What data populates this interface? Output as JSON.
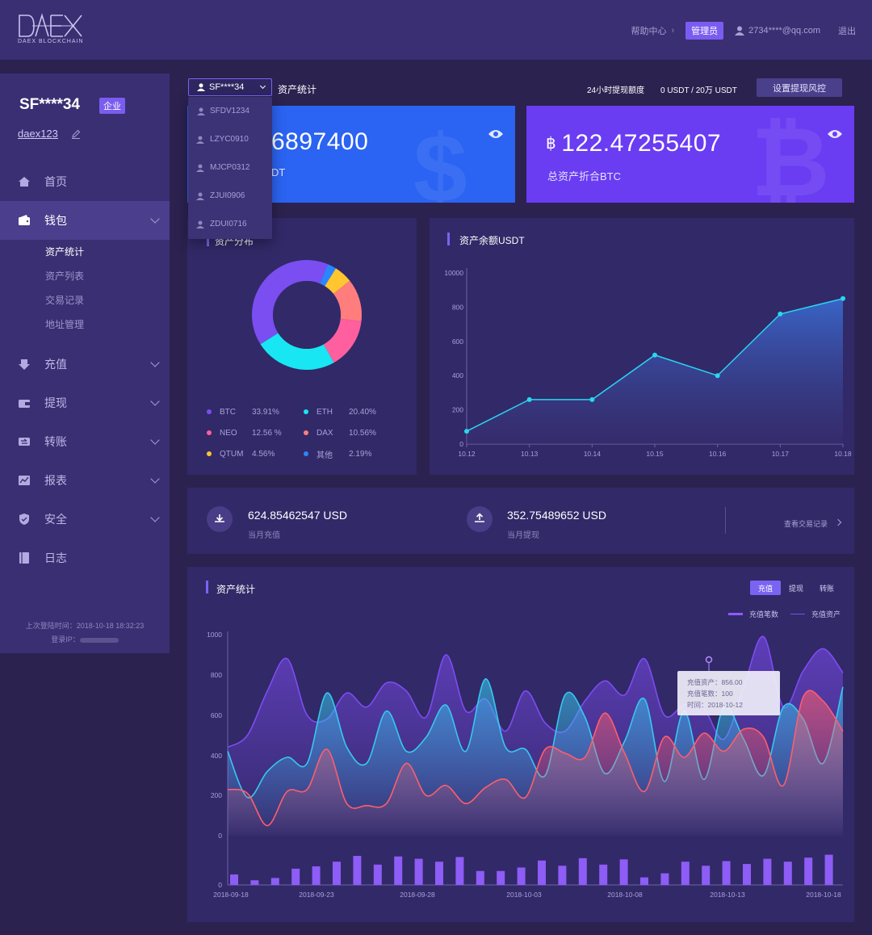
{
  "header": {
    "logo_text": "DAEX",
    "logo_sub": "DAEX BLOCKCHAIN",
    "help": "帮助中心",
    "role_badge": "管理员",
    "email": "2734****@qq.com",
    "logout": "退出"
  },
  "sidebar": {
    "username": "SF****34",
    "enterprise_badge": "企业",
    "account": "daex123",
    "menu": [
      {
        "label": "首页",
        "icon": "home-icon"
      },
      {
        "label": "钱包",
        "icon": "wallet-icon"
      },
      {
        "label": "充值",
        "icon": "deposit-icon"
      },
      {
        "label": "提现",
        "icon": "withdraw-icon"
      },
      {
        "label": "转账",
        "icon": "transfer-icon"
      },
      {
        "label": "报表",
        "icon": "report-icon"
      },
      {
        "label": "安全",
        "icon": "shield-icon"
      },
      {
        "label": "日志",
        "icon": "log-icon"
      }
    ],
    "wallet_sub": [
      "资产统计",
      "资产列表",
      "交易记录",
      "地址管理"
    ],
    "last_login": "上次登陆时间：2018-10-18 18:32:23",
    "login_ip_label": "登录IP："
  },
  "toolbar": {
    "selected_account": "SF****34",
    "accounts": [
      "SFDV1234",
      "LZYC0910",
      "MJCP0312",
      "ZJUI0906",
      "ZDUI0716"
    ],
    "page_title": "资产统计",
    "limit_label": "24小时提现额度",
    "limit_value": "0 USDT /  20万 USDT",
    "risk_button": "设置提现风控"
  },
  "cards": {
    "usdt_value": "6897400",
    "usdt_label": "DT",
    "btc_value": "122.47255407",
    "btc_label": "总资产折合BTC",
    "btc_symbol": "฿"
  },
  "distribution": {
    "title": "资产分布",
    "items": [
      {
        "name": "BTC",
        "pct": "33.91%",
        "value": 33.91,
        "color": "#7a4ef0"
      },
      {
        "name": "ETH",
        "pct": "20.40%",
        "value": 20.4,
        "color": "#18e6f2"
      },
      {
        "name": "NEO",
        "pct": "12.56 %",
        "value": 12.56,
        "color": "#ff5f9e"
      },
      {
        "name": "DAX",
        "pct": "10.56%",
        "value": 10.56,
        "color": "#ff7d7d"
      },
      {
        "name": "QTUM",
        "pct": "4.56%",
        "value": 4.56,
        "color": "#ffc62f"
      },
      {
        "name": "其他",
        "pct": "2.19%",
        "value": 2.19,
        "color": "#2a86ff"
      }
    ]
  },
  "balance_chart": {
    "title": "资产余额USDT"
  },
  "stats": {
    "deposit_value": "624.85462547 USD",
    "deposit_label": "当月充值",
    "withdraw_value": "352.75489652 USD",
    "withdraw_label": "当月提现",
    "view_link": "查看交易记录"
  },
  "asset_chart": {
    "title": "资产统计",
    "tabs": [
      "充值",
      "提现",
      "转账"
    ],
    "legend_count": "充值笔数",
    "legend_amount": "充值资产",
    "tooltip": {
      "amount": "充值资产：856.00",
      "count": "充值笔数：100",
      "time": "时间：2018-10-12"
    }
  },
  "chart_data": [
    {
      "type": "pie",
      "title": "资产分布",
      "categories": [
        "BTC",
        "ETH",
        "NEO",
        "DAX",
        "QTUM",
        "其他"
      ],
      "values": [
        33.91,
        20.4,
        12.56,
        10.56,
        4.56,
        2.19
      ]
    },
    {
      "type": "area",
      "title": "资产余额USDT",
      "x": [
        "10.12",
        "10.13",
        "10.14",
        "10.15",
        "10.16",
        "10.17",
        "10.18"
      ],
      "values": [
        75,
        260,
        260,
        520,
        400,
        760,
        850
      ],
      "y_ticks": [
        "0",
        "200",
        "400",
        "600",
        "800",
        "10000"
      ],
      "color": "#29d6f0"
    },
    {
      "type": "line",
      "title": "资产统计",
      "x_ticks": [
        "2018-09-18",
        "2018-09-23",
        "2018-09-28",
        "2018-10-03",
        "2018-10-08",
        "2018-10-13",
        "2018-10-18"
      ],
      "y_ticks": [
        "0",
        "0",
        "200",
        "400",
        "600",
        "800",
        "1000"
      ],
      "series": [
        {
          "name": "purple",
          "color": "#7d4cf2",
          "values": [
            440,
            500,
            720,
            880,
            600,
            580,
            710,
            640,
            760,
            720,
            590,
            900,
            620,
            680,
            520,
            720,
            560,
            520,
            670,
            770,
            700,
            880,
            600,
            650,
            630,
            480,
            740,
            990,
            640,
            820,
            930,
            810
          ]
        },
        {
          "name": "cyan",
          "color": "#35c9f0",
          "values": [
            420,
            190,
            320,
            390,
            360,
            710,
            440,
            360,
            620,
            420,
            490,
            650,
            420,
            780,
            440,
            430,
            300,
            700,
            590,
            310,
            470,
            680,
            270,
            620,
            280,
            640,
            480,
            300,
            640,
            580,
            360,
            740
          ]
        },
        {
          "name": "red",
          "color": "#ff5e6d",
          "values": [
            230,
            210,
            50,
            220,
            230,
            430,
            160,
            150,
            160,
            360,
            200,
            250,
            160,
            240,
            280,
            190,
            430,
            410,
            390,
            610,
            410,
            220,
            490,
            390,
            510,
            420,
            530,
            490,
            250,
            690,
            670,
            520
          ]
        },
        {
          "name": "bars",
          "color": "#8e5cf6",
          "values": [
            18,
            8,
            12,
            28,
            32,
            40,
            50,
            35,
            49,
            45,
            40,
            48,
            24,
            24,
            30,
            42,
            33,
            46,
            35,
            44,
            13,
            20,
            40,
            33,
            41,
            36,
            45,
            40,
            47,
            52
          ]
        }
      ]
    }
  ]
}
